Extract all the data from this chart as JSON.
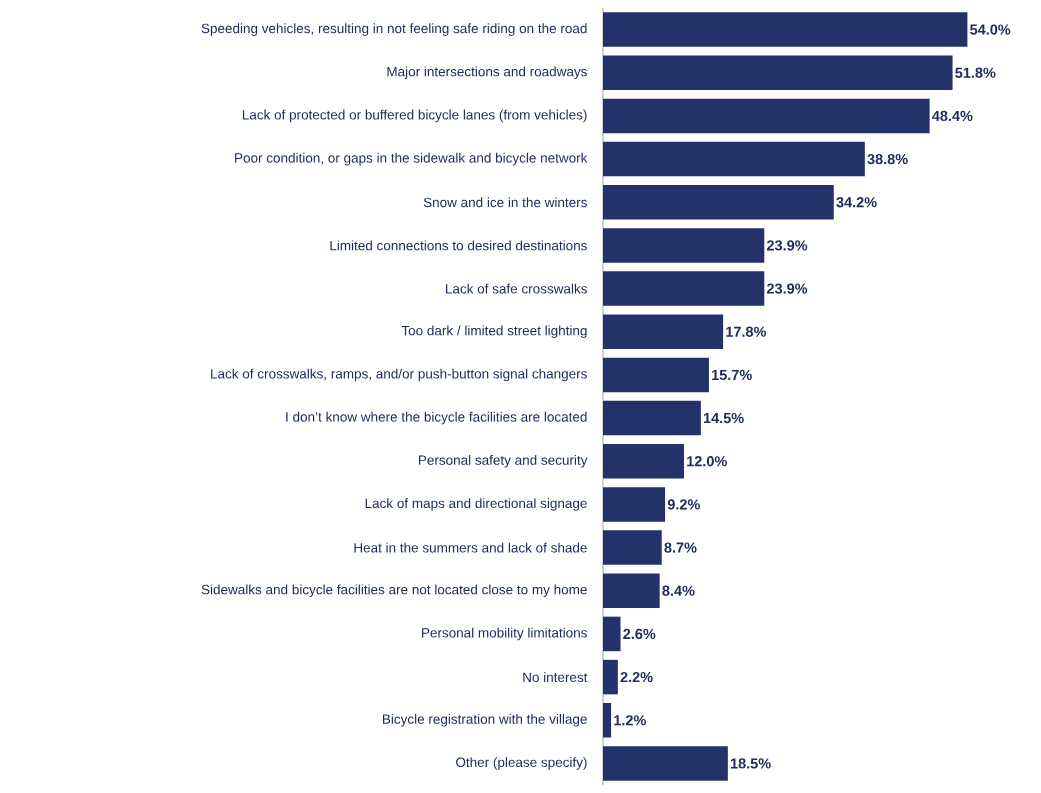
{
  "chart_data": {
    "type": "bar",
    "orientation": "horizontal",
    "categories": [
      "Speeding vehicles, resulting in not feeling safe riding on the road",
      "Major intersections and roadways",
      "Lack of protected or buffered bicycle lanes (from vehicles)",
      "Poor condition, or gaps in the sidewalk and bicycle network",
      "Snow and ice in the winters",
      "Limited connections to desired destinations",
      "Lack of safe crosswalks",
      "Too dark / limited street lighting",
      "Lack of crosswalks, ramps, and/or push-button signal changers",
      "I don’t know where the bicycle facilities are located",
      "Personal safety and security",
      "Lack of maps and directional signage",
      "Heat in the summers and lack of shade",
      "Sidewalks and bicycle facilities are not located close to my home",
      "Personal mobility limitations",
      "No interest",
      "Bicycle registration with the village",
      "Other (please specify)"
    ],
    "values": [
      54.0,
      51.8,
      48.4,
      38.8,
      34.2,
      23.9,
      23.9,
      17.8,
      15.7,
      14.5,
      12.0,
      9.2,
      8.7,
      8.4,
      2.6,
      2.2,
      1.2,
      18.5
    ],
    "value_labels": [
      "54.0%",
      "51.8%",
      "48.4%",
      "38.8%",
      "34.2%",
      "23.9%",
      "23.9%",
      "17.8%",
      "15.7%",
      "14.5%",
      "12.0%",
      "9.2%",
      "8.7%",
      "8.4%",
      "2.6%",
      "2.2%",
      "1.2%",
      "18.5%"
    ],
    "color": "#23336a"
  }
}
